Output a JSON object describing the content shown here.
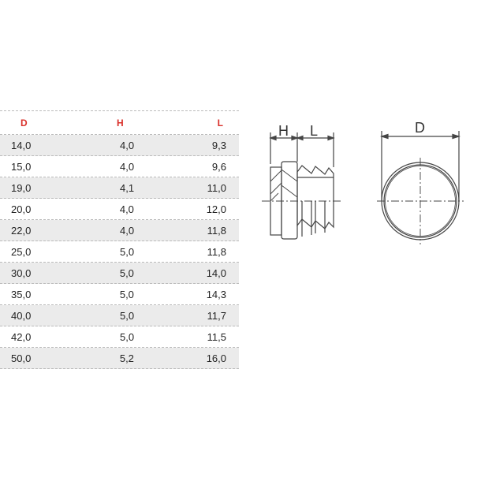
{
  "table": {
    "headers": [
      "D",
      "H",
      "L"
    ],
    "header_color": "#d9302a",
    "rows": [
      [
        "14,0",
        "4,0",
        "9,3"
      ],
      [
        "15,0",
        "4,0",
        "9,6"
      ],
      [
        "19,0",
        "4,1",
        "11,0"
      ],
      [
        "20,0",
        "4,0",
        "12,0"
      ],
      [
        "22,0",
        "4,0",
        "11,8"
      ],
      [
        "25,0",
        "5,0",
        "11,8"
      ],
      [
        "30,0",
        "5,0",
        "14,0"
      ],
      [
        "35,0",
        "5,0",
        "14,3"
      ],
      [
        "40,0",
        "5,0",
        "11,7"
      ],
      [
        "42,0",
        "5,0",
        "11,5"
      ],
      [
        "50,0",
        "5,2",
        "16,0"
      ]
    ]
  },
  "drawing": {
    "side_labels": {
      "h": "H",
      "l": "L"
    },
    "front_label": "D"
  }
}
